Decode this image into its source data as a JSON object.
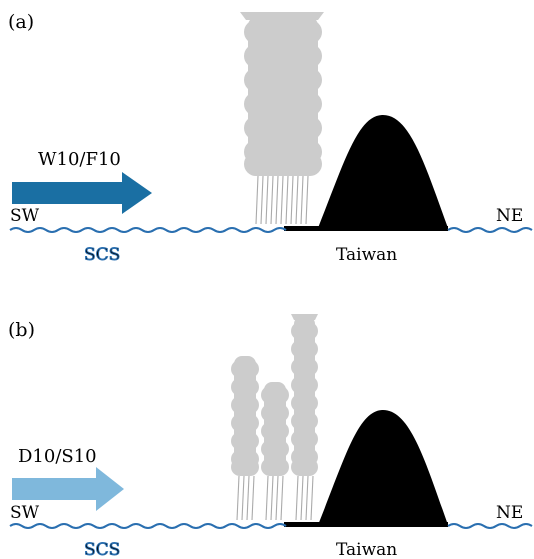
{
  "panels": [
    {
      "panel_label": "(a)",
      "arrow_label": "W10/F10",
      "left_side": "SW",
      "right_side": "NE",
      "sea_label": "SCS",
      "land_label": "Taiwan",
      "arrow_color": "#1a6fa3"
    },
    {
      "panel_label": "(b)",
      "arrow_label": "D10/S10",
      "left_side": "SW",
      "right_side": "NE",
      "sea_label": "SCS",
      "land_label": "Taiwan",
      "arrow_color": "#7fb8dc"
    }
  ],
  "colors": {
    "cloud": "#cccccc",
    "rain": "#aaaaaa",
    "mountain": "#000000",
    "sea_wave": "#2a6fb0"
  }
}
